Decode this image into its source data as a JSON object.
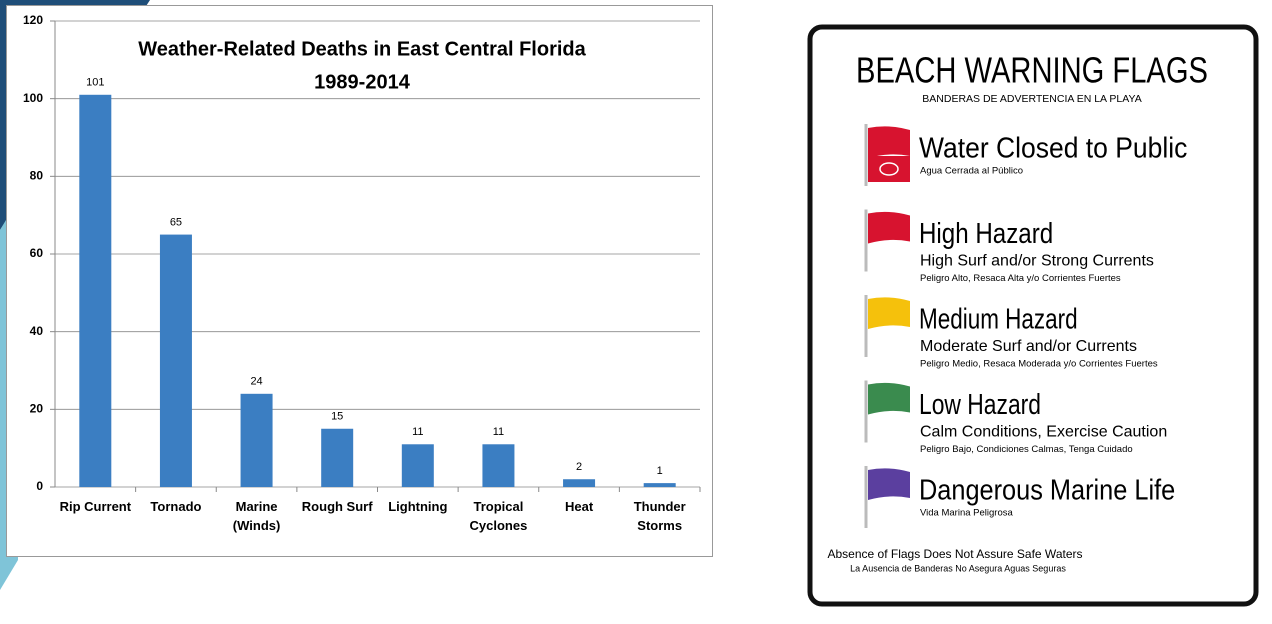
{
  "chart_data": {
    "type": "bar",
    "title": "Weather-Related Deaths in East Central Florida",
    "subtitle": "1989-2014",
    "categories": [
      "Rip Current",
      "Tornado",
      "Marine\n(Winds)",
      "Rough Surf",
      "Lightning",
      "Tropical\nCyclones",
      "Heat",
      "Thunder\nStorms"
    ],
    "values": [
      101,
      65,
      24,
      15,
      11,
      11,
      2,
      1
    ],
    "color": "#3b7ec2",
    "ylim": [
      0,
      120
    ],
    "yticks": [
      0,
      20,
      40,
      60,
      80,
      100,
      120
    ],
    "grid": true
  },
  "sign": {
    "title": "BEACH WARNING FLAGS",
    "subtitle": "BANDERAS DE ADVERTENCIA EN LA PLAYA",
    "flags": [
      {
        "color": "#d7132f",
        "heading": "Water Closed to Public",
        "spanish": "Agua Cerrada al Público"
      },
      {
        "color": "#d7132f",
        "heading": "High Hazard",
        "detail": "High Surf and/or Strong Currents",
        "spanish": "Peligro Alto, Resaca Alta y/o Corrientes Fuertes"
      },
      {
        "color": "#f5c10c",
        "heading": "Medium Hazard",
        "detail": "Moderate Surf and/or Currents",
        "spanish": "Peligro Medio, Resaca Moderada y/o Corrientes Fuertes"
      },
      {
        "color": "#3a8b4e",
        "heading": "Low Hazard",
        "detail": "Calm Conditions, Exercise Caution",
        "spanish": "Peligro Bajo, Condiciones Calmas, Tenga Cuidado"
      },
      {
        "color": "#5b3f9f",
        "heading": "Dangerous Marine Life",
        "spanish": "Vida Marina Peligrosa"
      }
    ],
    "footer": "Absence of Flags Does Not Assure Safe Waters",
    "footer_sub": "La Ausencia de Banderas No Asegura Aguas Seguras"
  }
}
